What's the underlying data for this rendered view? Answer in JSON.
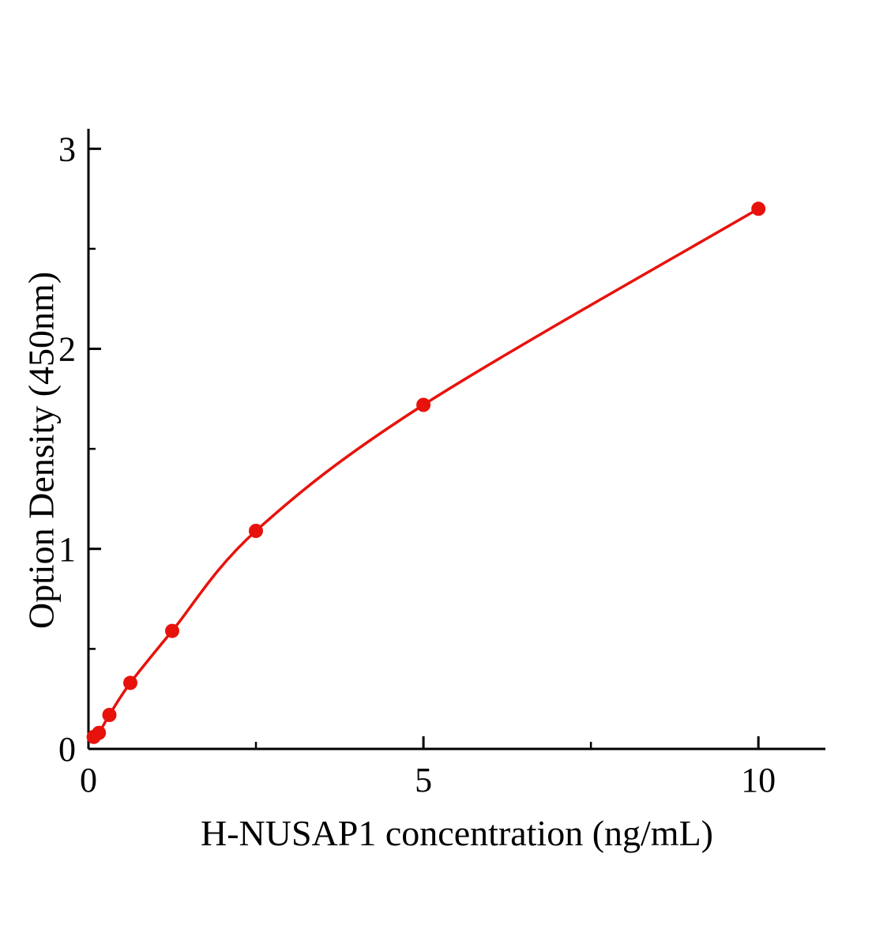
{
  "chart_data": {
    "type": "scatter",
    "title": "",
    "xlabel": "H-NUSAP1 concentration (ng/mL)",
    "ylabel": "Option Density (450nm)",
    "x": [
      0.078,
      0.156,
      0.313,
      0.625,
      1.25,
      2.5,
      5,
      10
    ],
    "y": [
      0.06,
      0.08,
      0.17,
      0.33,
      0.59,
      1.09,
      1.72,
      2.7
    ],
    "xlim": [
      0,
      11
    ],
    "ylim": [
      0,
      3.1
    ],
    "x_ticks": [
      0,
      5,
      10
    ],
    "x_tick_labels": [
      "0",
      "5",
      "10"
    ],
    "y_ticks": [
      0,
      1,
      2,
      3
    ],
    "y_tick_labels": [
      "0",
      "1",
      "2",
      "3"
    ],
    "x_minor_ticks": [
      2.5,
      7.5
    ],
    "y_minor_ticks": [
      0.5,
      1.5,
      2.5
    ],
    "grid": false,
    "legend": "none",
    "line_color": "#e8120c",
    "marker_color": "#e8120c",
    "axis_color": "#000000",
    "marker_radius": 9
  }
}
